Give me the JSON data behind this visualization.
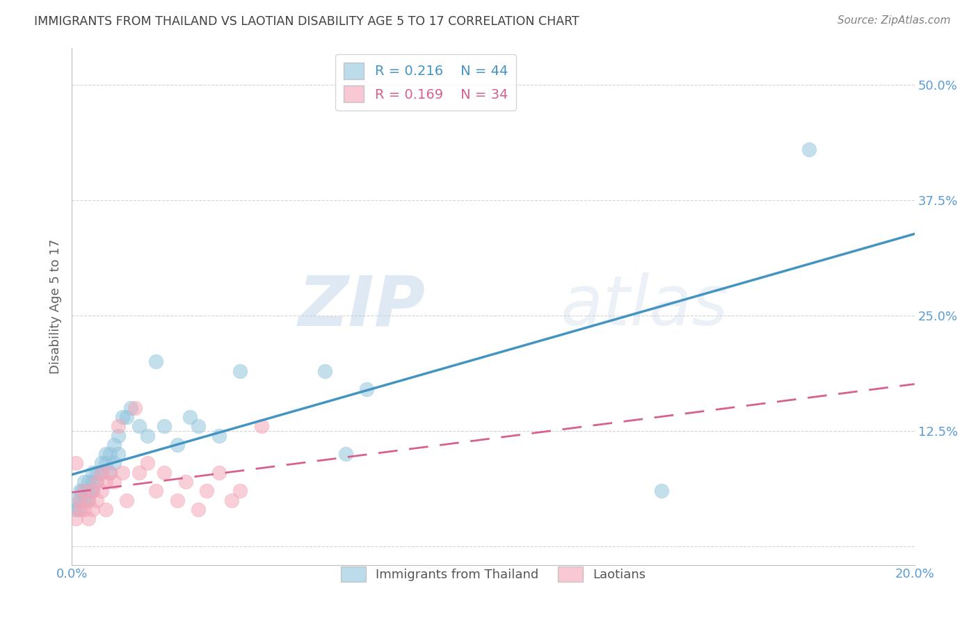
{
  "title": "IMMIGRANTS FROM THAILAND VS LAOTIAN DISABILITY AGE 5 TO 17 CORRELATION CHART",
  "source": "Source: ZipAtlas.com",
  "ylabel": "Disability Age 5 to 17",
  "xlim": [
    0.0,
    0.2
  ],
  "ylim": [
    -0.02,
    0.54
  ],
  "xticks": [
    0.0,
    0.05,
    0.1,
    0.15,
    0.2
  ],
  "xticklabels": [
    "0.0%",
    "",
    "",
    "",
    "20.0%"
  ],
  "yticks": [
    0.0,
    0.125,
    0.25,
    0.375,
    0.5
  ],
  "yticklabels": [
    "",
    "12.5%",
    "25.0%",
    "37.5%",
    "50.0%"
  ],
  "legend_r1": "R = 0.216",
  "legend_n1": "N = 44",
  "legend_r2": "R = 0.169",
  "legend_n2": "N = 34",
  "blue_color": "#92c5de",
  "pink_color": "#f4a6b8",
  "line_blue": "#4393c3",
  "line_pink": "#d6618f",
  "watermark_zip": "ZIP",
  "watermark_atlas": "atlas",
  "background_color": "#ffffff",
  "grid_color": "#d0d0d0",
  "tick_color": "#5b9bd5",
  "title_color": "#404040",
  "source_color": "#808080",
  "ylabel_color": "#606060",
  "thailand_x": [
    0.0008,
    0.001,
    0.0015,
    0.002,
    0.002,
    0.0025,
    0.003,
    0.003,
    0.0035,
    0.004,
    0.004,
    0.0045,
    0.005,
    0.005,
    0.005,
    0.006,
    0.006,
    0.007,
    0.007,
    0.008,
    0.008,
    0.009,
    0.009,
    0.01,
    0.01,
    0.011,
    0.011,
    0.012,
    0.013,
    0.014,
    0.016,
    0.018,
    0.02,
    0.022,
    0.025,
    0.028,
    0.03,
    0.035,
    0.04,
    0.06,
    0.065,
    0.07,
    0.14,
    0.175
  ],
  "thailand_y": [
    0.04,
    0.05,
    0.04,
    0.05,
    0.06,
    0.06,
    0.05,
    0.07,
    0.06,
    0.05,
    0.07,
    0.06,
    0.06,
    0.07,
    0.08,
    0.07,
    0.08,
    0.08,
    0.09,
    0.09,
    0.1,
    0.08,
    0.1,
    0.09,
    0.11,
    0.1,
    0.12,
    0.14,
    0.14,
    0.15,
    0.13,
    0.12,
    0.2,
    0.13,
    0.11,
    0.14,
    0.13,
    0.12,
    0.19,
    0.19,
    0.1,
    0.17,
    0.06,
    0.43
  ],
  "laotian_x": [
    0.001,
    0.001,
    0.002,
    0.002,
    0.003,
    0.003,
    0.004,
    0.004,
    0.005,
    0.005,
    0.006,
    0.006,
    0.007,
    0.007,
    0.008,
    0.008,
    0.009,
    0.01,
    0.011,
    0.012,
    0.013,
    0.015,
    0.016,
    0.018,
    0.02,
    0.022,
    0.025,
    0.027,
    0.03,
    0.032,
    0.035,
    0.038,
    0.04,
    0.045
  ],
  "laotian_y": [
    0.03,
    0.09,
    0.04,
    0.05,
    0.04,
    0.06,
    0.03,
    0.05,
    0.04,
    0.06,
    0.05,
    0.07,
    0.06,
    0.08,
    0.07,
    0.04,
    0.08,
    0.07,
    0.13,
    0.08,
    0.05,
    0.15,
    0.08,
    0.09,
    0.06,
    0.08,
    0.05,
    0.07,
    0.04,
    0.06,
    0.08,
    0.05,
    0.06,
    0.13
  ]
}
